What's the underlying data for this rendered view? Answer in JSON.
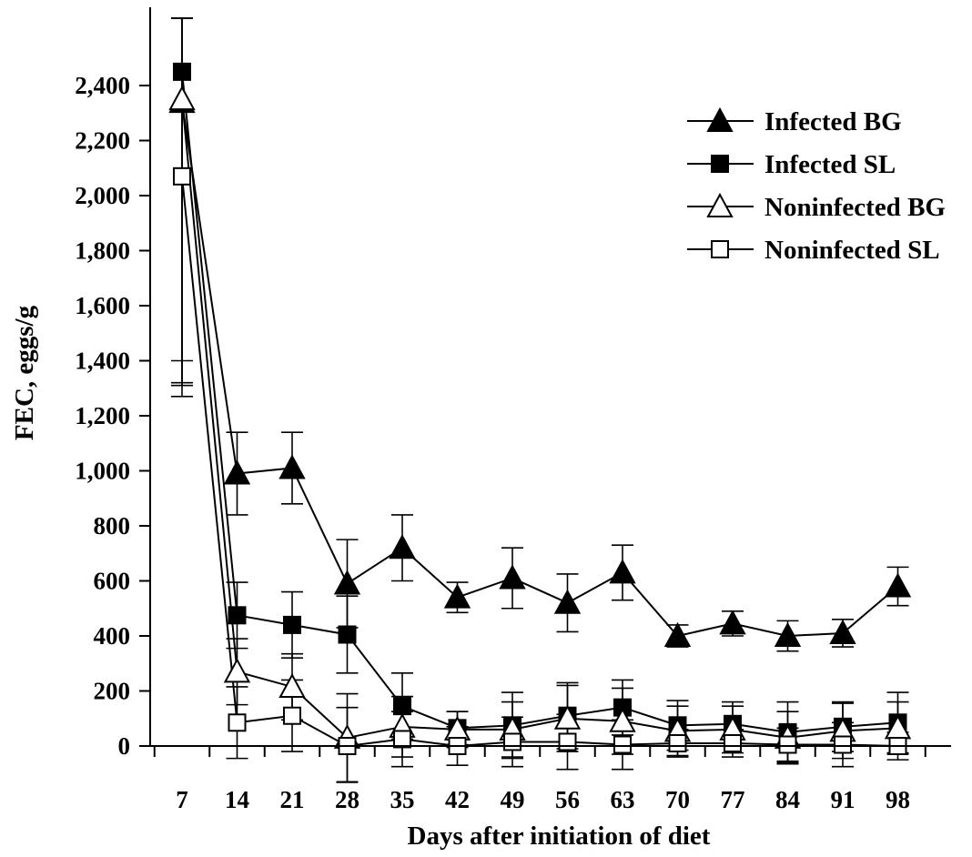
{
  "chart_data": {
    "type": "line",
    "title": "",
    "xlabel": "Days after initiation of diet",
    "ylabel": "FEC, eggs/g",
    "ylim": [
      0,
      2500
    ],
    "yticks": [
      0,
      200,
      400,
      600,
      800,
      1000,
      1200,
      1400,
      1600,
      1800,
      2000,
      2200,
      2400
    ],
    "ytick_labels": [
      "0",
      "200",
      "400",
      "600",
      "800",
      "1,000",
      "1,200",
      "1,400",
      "1,600",
      "1,800",
      "2,000",
      "2,200",
      "2,400"
    ],
    "categories": [
      "7",
      "14",
      "21",
      "28",
      "35",
      "42",
      "49",
      "56",
      "63",
      "70",
      "77",
      "84",
      "91",
      "98"
    ],
    "grid": false,
    "legend_position": "top-right",
    "series": [
      {
        "name": "Infected BG",
        "marker": "filled-triangle",
        "values": [
          2340,
          990,
          1010,
          590,
          720,
          540,
          610,
          520,
          630,
          400,
          445,
          400,
          410,
          580
        ],
        "errors": [
          1030,
          150,
          130,
          160,
          120,
          55,
          110,
          105,
          100,
          40,
          45,
          55,
          50,
          70
        ]
      },
      {
        "name": "Infected SL",
        "marker": "filled-square",
        "values": [
          2450,
          475,
          440,
          405,
          145,
          65,
          75,
          110,
          140,
          75,
          80,
          50,
          70,
          85
        ],
        "errors": [
          1050,
          120,
          120,
          140,
          120,
          60,
          120,
          120,
          100,
          90,
          80,
          110,
          90,
          110
        ]
      },
      {
        "name": "Noninfected BG",
        "marker": "open-triangle",
        "values": [
          2350,
          270,
          215,
          30,
          70,
          60,
          60,
          100,
          90,
          55,
          60,
          30,
          55,
          65
        ],
        "errors": [
          1080,
          120,
          120,
          160,
          110,
          65,
          100,
          120,
          120,
          90,
          85,
          95,
          100,
          95
        ]
      },
      {
        "name": "Noninfected SL",
        "marker": "open-square",
        "values": [
          2070,
          85,
          110,
          0,
          25,
          0,
          15,
          15,
          5,
          10,
          10,
          5,
          5,
          0
        ],
        "errors": [
          750,
          130,
          130,
          140,
          100,
          70,
          90,
          100,
          90,
          50,
          50,
          60,
          80,
          50
        ]
      }
    ]
  }
}
